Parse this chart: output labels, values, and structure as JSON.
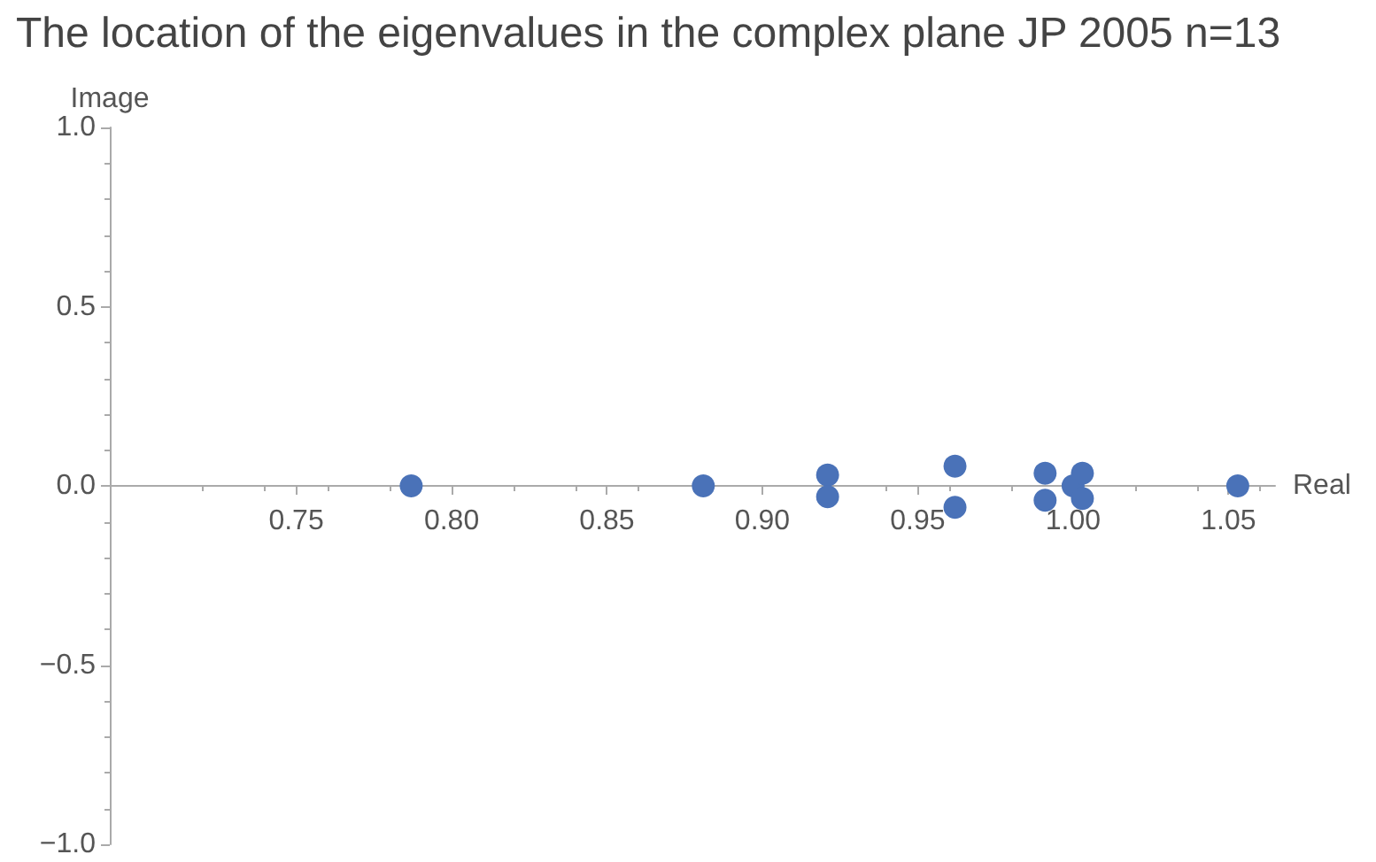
{
  "chart_data": {
    "type": "scatter",
    "title": "The location of the eigenvalues in the complex plane JP 2005 n=13",
    "xlabel": "Real",
    "ylabel": "Image",
    "x": [
      0.787,
      0.881,
      0.921,
      0.921,
      0.962,
      0.962,
      0.991,
      0.991,
      1.0,
      1.003,
      1.003,
      1.053
    ],
    "values": [
      0,
      0,
      0.03,
      -0.03,
      0.055,
      -0.06,
      0.035,
      -0.04,
      0,
      0.035,
      -0.035,
      0
    ],
    "color": "#4a72b8",
    "marker": "circle",
    "xlim": [
      0.69,
      1.065
    ],
    "xticks": [
      {
        "value": 0.75,
        "label": "0.75"
      },
      {
        "value": 0.8,
        "label": "0.80"
      },
      {
        "value": 0.85,
        "label": "0.85"
      },
      {
        "value": 0.9,
        "label": "0.90"
      },
      {
        "value": 0.95,
        "label": "0.95"
      },
      {
        "value": 1.0,
        "label": "1.00"
      },
      {
        "value": 1.05,
        "label": "1.05"
      }
    ],
    "ylim": [
      -1,
      1
    ],
    "yticks": [
      {
        "value": -1,
        "label": "−1.0"
      },
      {
        "value": -0.5,
        "label": "−0.5"
      },
      {
        "value": 0,
        "label": "0.0"
      },
      {
        "value": 0.5,
        "label": "0.5"
      },
      {
        "value": 1,
        "label": "1.0"
      }
    ]
  }
}
